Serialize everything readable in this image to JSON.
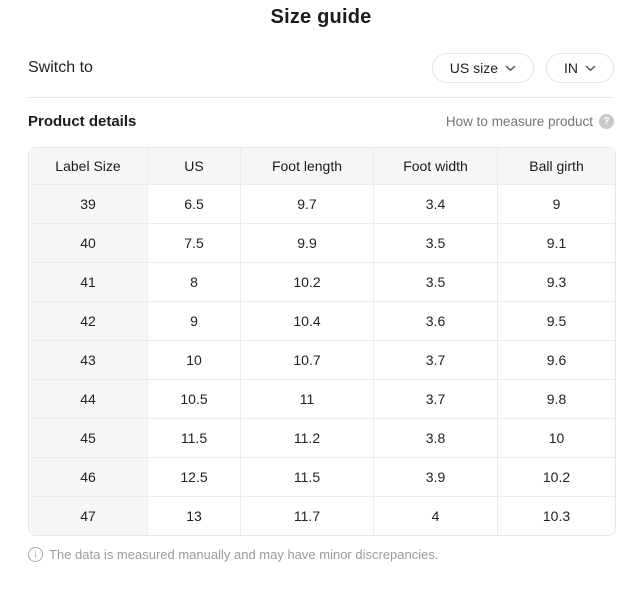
{
  "page": {
    "title": "Size guide",
    "switch": {
      "label": "Switch to",
      "options": [
        {
          "label": "US size"
        },
        {
          "label": "IN"
        }
      ]
    },
    "details": {
      "heading": "Product details",
      "measure_link": "How to measure product",
      "help_icon_glyph": "?"
    },
    "footer": {
      "info_icon_glyph": "i",
      "note": "The data is measured manually and may have minor discrepancies."
    }
  },
  "chart_data": {
    "type": "table",
    "title": "Size guide - product details",
    "columns": [
      "Label Size",
      "US",
      "Foot length",
      "Foot width",
      "Ball girth"
    ],
    "rows": [
      [
        "39",
        "6.5",
        "9.7",
        "3.4",
        "9"
      ],
      [
        "40",
        "7.5",
        "9.9",
        "3.5",
        "9.1"
      ],
      [
        "41",
        "8",
        "10.2",
        "3.5",
        "9.3"
      ],
      [
        "42",
        "9",
        "10.4",
        "3.6",
        "9.5"
      ],
      [
        "43",
        "10",
        "10.7",
        "3.7",
        "9.6"
      ],
      [
        "44",
        "10.5",
        "11",
        "3.7",
        "9.8"
      ],
      [
        "45",
        "11.5",
        "11.2",
        "3.8",
        "10"
      ],
      [
        "46",
        "12.5",
        "11.5",
        "3.9",
        "10.2"
      ],
      [
        "47",
        "13",
        "11.7",
        "4",
        "10.3"
      ]
    ]
  },
  "colors": {
    "table_header_bg": "#f7f7f7",
    "table_border": "#e7e7e7",
    "text_primary": "#1b1b1b",
    "text_muted": "#9b9b9b",
    "pill_border": "#e3e3e3"
  }
}
